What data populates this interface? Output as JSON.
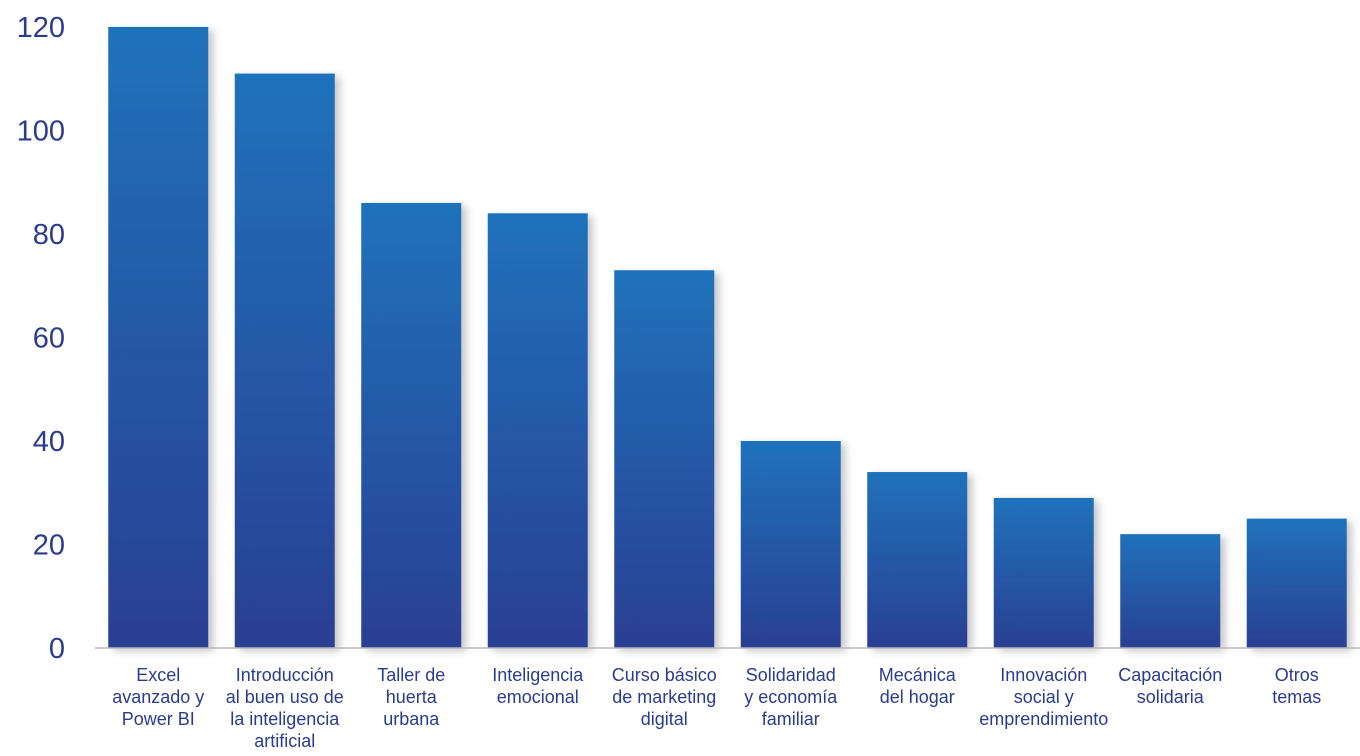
{
  "chart_data": {
    "type": "bar",
    "title": "",
    "xlabel": "",
    "ylabel": "",
    "ylim": [
      0,
      120
    ],
    "yticks": [
      0,
      20,
      40,
      60,
      80,
      100,
      120
    ],
    "grid": false,
    "legend": "none",
    "colors": {
      "bar_top": "#1f72bb",
      "bar_bottom": "#2a3f93",
      "text": "#2b3b8f",
      "axis": "#b8b8b8"
    },
    "categories": [
      [
        "Excel",
        "avanzado y",
        "Power BI"
      ],
      [
        "Introducción",
        "al buen uso de",
        "la inteligencia",
        "artificial"
      ],
      [
        "Taller de",
        "huerta",
        "urbana"
      ],
      [
        "Inteligencia",
        "emocional"
      ],
      [
        "Curso básico",
        "de marketing",
        "digital"
      ],
      [
        "Solidaridad",
        "y economía",
        "familiar"
      ],
      [
        "Mecánica",
        "del hogar"
      ],
      [
        "Innovación",
        "social y",
        "emprendimiento"
      ],
      [
        "Capacitación",
        "solidaria"
      ],
      [
        "Otros",
        "temas"
      ]
    ],
    "values": [
      120,
      111,
      86,
      84,
      73,
      40,
      34,
      29,
      22,
      25
    ]
  }
}
